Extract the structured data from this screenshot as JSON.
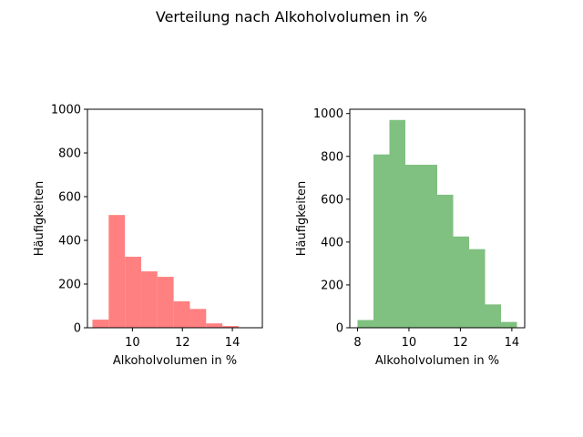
{
  "figure_title": "Verteilung nach Alkoholvolumen in %",
  "chart_data": [
    {
      "type": "bar",
      "title": "",
      "xlabel": "Alkoholvolumen in %",
      "ylabel": "Häufigkeiten",
      "color": "#ff8080",
      "xlim": [
        8.2,
        15.2
      ],
      "ylim": [
        0,
        1000
      ],
      "xticks": [
        10,
        12,
        14
      ],
      "yticks": [
        0,
        200,
        400,
        600,
        800,
        1000
      ],
      "bin_edges": [
        8.4,
        9.05,
        9.7,
        10.35,
        11.0,
        11.65,
        12.3,
        12.95,
        13.6,
        14.25,
        14.9
      ],
      "values": [
        37,
        516,
        325,
        258,
        233,
        121,
        86,
        20,
        8,
        1
      ]
    },
    {
      "type": "bar",
      "title": "",
      "xlabel": "Alkoholvolumen in %",
      "ylabel": "Häufigkeiten",
      "color": "#80c080",
      "xlim": [
        7.7,
        14.5
      ],
      "ylim": [
        0,
        1020
      ],
      "xticks": [
        8,
        10,
        12,
        14
      ],
      "yticks": [
        0,
        200,
        400,
        600,
        800,
        1000
      ],
      "bin_edges": [
        8.0,
        8.62,
        9.24,
        9.86,
        10.48,
        11.1,
        11.72,
        12.34,
        12.96,
        13.58,
        14.2
      ],
      "values": [
        36,
        809,
        970,
        761,
        761,
        621,
        426,
        367,
        109,
        27
      ]
    }
  ]
}
